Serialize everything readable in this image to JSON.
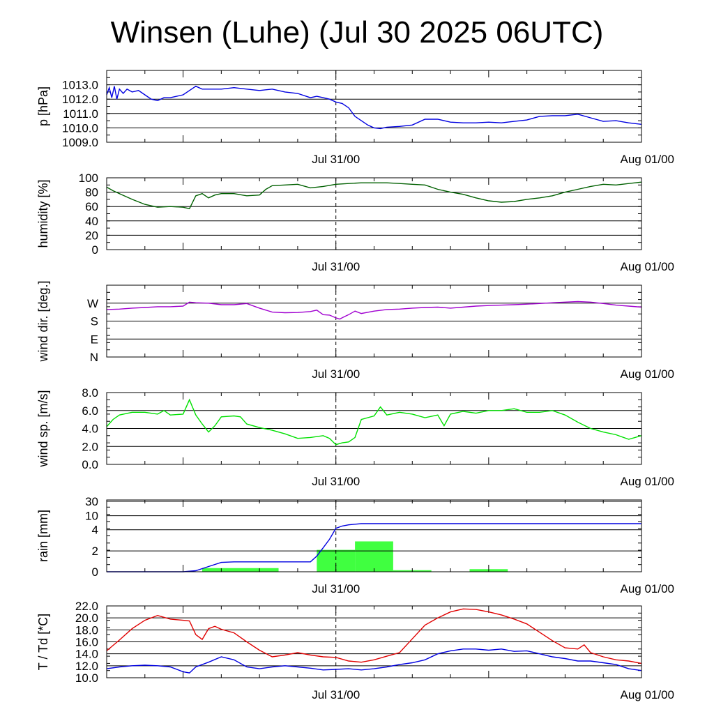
{
  "title": "Winsen (Luhe) (Jul 30 2025 06UTC)",
  "chart_data": [
    {
      "id": "pressure",
      "type": "line",
      "ylabel": "p [hPa]",
      "ylim": [
        1009.0,
        1014.0
      ],
      "yticks": [
        1009.0,
        1010.0,
        1011.0,
        1012.0,
        1013.0
      ],
      "ytick_labels": [
        "1009.0",
        "1010.0",
        "1011.0",
        "1012.0",
        "1013.0"
      ],
      "xlim": [
        0,
        42
      ],
      "xticks": [
        18,
        42
      ],
      "xtick_labels": [
        "Jul 31/00",
        "Aug 01/00"
      ],
      "series": [
        {
          "color": "#0000e0",
          "x": [
            0,
            0.2,
            0.4,
            0.6,
            0.8,
            1.0,
            1.3,
            1.6,
            2,
            2.5,
            3,
            3.5,
            4,
            4.5,
            5,
            5.5,
            6,
            6.5,
            7,
            7.5,
            8,
            9,
            10,
            11,
            12,
            13,
            14,
            15,
            16,
            16.5,
            17,
            17.5,
            18,
            18.5,
            19,
            19.5,
            20,
            20.5,
            21,
            21.5,
            22,
            23,
            24,
            25,
            26,
            27,
            28,
            29,
            30,
            31,
            32,
            33,
            34,
            35,
            36,
            37,
            38,
            39,
            40,
            41,
            42
          ],
          "y": [
            1012.3,
            1012.8,
            1012.1,
            1012.9,
            1012.0,
            1012.7,
            1012.4,
            1012.7,
            1012.5,
            1012.6,
            1012.3,
            1012.0,
            1011.9,
            1012.1,
            1012.1,
            1012.2,
            1012.3,
            1012.6,
            1012.9,
            1012.7,
            1012.7,
            1012.7,
            1012.8,
            1012.7,
            1012.6,
            1012.7,
            1012.5,
            1012.4,
            1012.1,
            1012.2,
            1012.1,
            1012.0,
            1011.8,
            1011.7,
            1011.4,
            1010.8,
            1010.5,
            1010.2,
            1010.0,
            1009.95,
            1010.05,
            1010.1,
            1010.2,
            1010.6,
            1010.6,
            1010.4,
            1010.35,
            1010.35,
            1010.4,
            1010.35,
            1010.45,
            1010.55,
            1010.8,
            1010.85,
            1010.85,
            1010.95,
            1010.7,
            1010.45,
            1010.5,
            1010.35,
            1010.25
          ]
        }
      ]
    },
    {
      "id": "humidity",
      "type": "line",
      "ylabel": "humidity [%]",
      "ylim": [
        0,
        100
      ],
      "yticks": [
        0,
        20,
        40,
        60,
        80,
        100
      ],
      "ytick_labels": [
        "0",
        "20",
        "40",
        "60",
        "80",
        "100"
      ],
      "xlim": [
        0,
        42
      ],
      "xticks": [
        18,
        42
      ],
      "xtick_labels": [
        "Jul 31/00",
        "Aug 01/00"
      ],
      "series": [
        {
          "color": "#006000",
          "x": [
            0,
            0.5,
            1,
            2,
            3,
            4,
            5,
            6,
            6.5,
            7,
            7.5,
            8,
            8.5,
            9,
            10,
            11,
            12,
            12.5,
            13,
            14,
            15,
            16,
            17,
            18,
            19,
            20,
            21,
            22,
            23,
            24,
            25,
            26,
            27,
            28,
            29,
            30,
            31,
            32,
            33,
            34,
            35,
            36,
            37,
            38,
            39,
            40,
            41,
            42
          ],
          "y": [
            87,
            82,
            78,
            70,
            63,
            59,
            60,
            59,
            57,
            75,
            78,
            72,
            76,
            78,
            78,
            75,
            76,
            84,
            89,
            90,
            91,
            86,
            88,
            91,
            92,
            93,
            93,
            93,
            92,
            91,
            90,
            84,
            80,
            77,
            72,
            68,
            66,
            67,
            70,
            72,
            75,
            80,
            84,
            88,
            91,
            90,
            92,
            94
          ]
        }
      ]
    },
    {
      "id": "wind_direction",
      "type": "line",
      "ylabel": "wind dir. [deg.]",
      "ylim": [
        0,
        360
      ],
      "yticks": [
        0,
        90,
        180,
        270
      ],
      "ytick_labels": [
        "N",
        "E",
        "S",
        "W"
      ],
      "xlim": [
        0,
        42
      ],
      "xticks": [
        18,
        42
      ],
      "xtick_labels": [
        "Jul 31/00",
        "Aug 01/00"
      ],
      "series": [
        {
          "color": "#a000d0",
          "x": [
            0,
            1,
            2,
            3,
            4,
            5,
            6,
            6.5,
            7,
            8,
            9,
            10,
            11,
            12,
            13,
            14,
            15,
            16,
            16.5,
            17,
            17.5,
            18,
            18.3,
            18.6,
            19,
            19.5,
            20,
            21,
            22,
            23,
            24,
            25,
            26,
            27,
            28,
            29,
            30,
            31,
            32,
            33,
            34,
            35,
            36,
            37,
            38,
            39,
            40,
            41,
            42
          ],
          "y": [
            238,
            240,
            245,
            248,
            252,
            252,
            255,
            275,
            272,
            270,
            262,
            262,
            268,
            245,
            225,
            222,
            223,
            228,
            235,
            212,
            210,
            196,
            190,
            200,
            212,
            230,
            218,
            230,
            238,
            240,
            245,
            248,
            250,
            245,
            250,
            255,
            258,
            260,
            262,
            265,
            268,
            272,
            275,
            278,
            275,
            268,
            260,
            255,
            250
          ]
        }
      ]
    },
    {
      "id": "wind_speed",
      "type": "line",
      "ylabel": "wind sp. [m/s]",
      "ylim": [
        0,
        8.0
      ],
      "yticks": [
        0,
        2.0,
        4.0,
        6.0,
        8.0
      ],
      "ytick_labels": [
        "0.0",
        "2.0",
        "4.0",
        "6.0",
        "8.0"
      ],
      "xlim": [
        0,
        42
      ],
      "xticks": [
        18,
        42
      ],
      "xtick_labels": [
        "Jul 31/00",
        "Aug 01/00"
      ],
      "series": [
        {
          "color": "#00e000",
          "x": [
            0,
            0.5,
            1,
            2,
            3,
            4,
            4.5,
            5,
            6,
            6.5,
            7,
            7.5,
            8,
            8.5,
            9,
            10,
            10.5,
            11,
            12,
            13,
            14,
            15,
            16,
            17,
            17.5,
            18,
            18.5,
            19,
            19.5,
            20,
            21,
            21.5,
            22,
            23,
            24,
            25,
            26,
            26.5,
            27,
            28,
            29,
            30,
            31,
            32,
            33,
            34,
            35,
            36,
            37,
            38,
            39,
            40,
            41,
            42
          ],
          "y": [
            4.2,
            5.0,
            5.5,
            5.8,
            5.8,
            5.6,
            6.0,
            5.5,
            5.6,
            7.2,
            5.5,
            4.5,
            3.6,
            4.3,
            5.3,
            5.4,
            5.3,
            4.5,
            4.1,
            3.8,
            3.4,
            2.9,
            3.0,
            3.2,
            2.9,
            2.2,
            2.4,
            2.5,
            3.0,
            5.0,
            5.4,
            6.4,
            5.5,
            5.8,
            5.6,
            5.2,
            5.5,
            4.3,
            5.6,
            5.9,
            5.7,
            6.0,
            6.0,
            6.2,
            5.8,
            5.8,
            6.0,
            5.5,
            4.7,
            4.0,
            3.6,
            3.3,
            2.8,
            3.2
          ]
        }
      ]
    },
    {
      "id": "rain",
      "type": "bar+line",
      "ylabel": "rain [mm]",
      "yscale": "nonlinear",
      "ytick_values": [
        0,
        2,
        4,
        10,
        30
      ],
      "ytick_labels": [
        "0",
        "2",
        "4",
        "10",
        "30"
      ],
      "xlim": [
        0,
        42
      ],
      "xticks": [
        18,
        42
      ],
      "xtick_labels": [
        "Jul 31/00",
        "Aug 01/00"
      ],
      "bars": {
        "color": "#40ff40",
        "x_start": [
          7.5,
          16.5,
          19.5,
          22.5,
          28.5
        ],
        "x_end": [
          13.5,
          19.5,
          22.5,
          25.5,
          31.5
        ],
        "values": [
          0.35,
          2.1,
          2.9,
          0.15,
          0.25
        ]
      },
      "series": [
        {
          "color": "#0000e0",
          "x": [
            0,
            6,
            7,
            8,
            9,
            10,
            16,
            16.5,
            17,
            17.5,
            18,
            18.5,
            19,
            20,
            42
          ],
          "y": [
            0,
            0,
            0.1,
            0.5,
            0.9,
            0.95,
            0.95,
            1.5,
            2.3,
            3.1,
            4.6,
            5.6,
            6.1,
            6.6,
            6.6
          ]
        }
      ]
    },
    {
      "id": "temperature",
      "type": "line",
      "ylabel": "T / Td [*C]",
      "ylim": [
        10.0,
        22.0
      ],
      "yticks": [
        10.0,
        12.0,
        14.0,
        16.0,
        18.0,
        20.0,
        22.0
      ],
      "ytick_labels": [
        "10.0",
        "12.0",
        "14.0",
        "16.0",
        "18.0",
        "20.0",
        "22.0"
      ],
      "xlim": [
        0,
        42
      ],
      "xticks": [
        18,
        42
      ],
      "xtick_labels": [
        "Jul 31/00",
        "Aug 01/00"
      ],
      "series": [
        {
          "color": "#e00000",
          "x": [
            0,
            1,
            2,
            3,
            4,
            5,
            6,
            6.5,
            7,
            7.5,
            8,
            8.5,
            9,
            10,
            11,
            12,
            13,
            14,
            15,
            16,
            17,
            18,
            19,
            20,
            21,
            22,
            23,
            24,
            25,
            26,
            27,
            28,
            29,
            30,
            31,
            32,
            33,
            34,
            35,
            36,
            37,
            37.5,
            38,
            39,
            40,
            41,
            42
          ],
          "y": [
            14.5,
            16.3,
            18.2,
            19.6,
            20.4,
            19.8,
            19.6,
            19.5,
            17.2,
            16.4,
            18.2,
            18.6,
            18.1,
            17.5,
            16.0,
            14.6,
            13.5,
            13.8,
            14.2,
            13.8,
            13.5,
            13.4,
            12.8,
            12.6,
            13.0,
            13.6,
            14.2,
            16.5,
            18.8,
            20.0,
            21.0,
            21.5,
            21.4,
            21.0,
            20.5,
            19.8,
            19.0,
            17.6,
            16.2,
            15.0,
            14.8,
            15.5,
            14.2,
            13.5,
            13.0,
            12.8,
            12.4
          ]
        },
        {
          "color": "#0000e0",
          "x": [
            0,
            1,
            2,
            3,
            4,
            5,
            6,
            6.5,
            7,
            8,
            9,
            10,
            11,
            12,
            13,
            14,
            15,
            16,
            17,
            18,
            19,
            20,
            21,
            22,
            23,
            24,
            25,
            26,
            27,
            28,
            29,
            30,
            31,
            32,
            33,
            34,
            35,
            36,
            37,
            38,
            39,
            40,
            41,
            42
          ],
          "y": [
            11.5,
            11.8,
            12.0,
            12.1,
            12.0,
            11.8,
            11.0,
            10.8,
            11.8,
            12.6,
            13.5,
            13.0,
            11.8,
            11.5,
            11.8,
            12.0,
            11.8,
            11.6,
            11.3,
            11.4,
            11.5,
            11.3,
            11.5,
            11.8,
            12.2,
            12.5,
            13.0,
            14.0,
            14.5,
            14.8,
            14.8,
            14.6,
            14.8,
            14.4,
            14.5,
            14.0,
            13.5,
            13.2,
            12.8,
            12.8,
            12.5,
            12.2,
            11.5,
            11.2
          ]
        }
      ]
    }
  ]
}
